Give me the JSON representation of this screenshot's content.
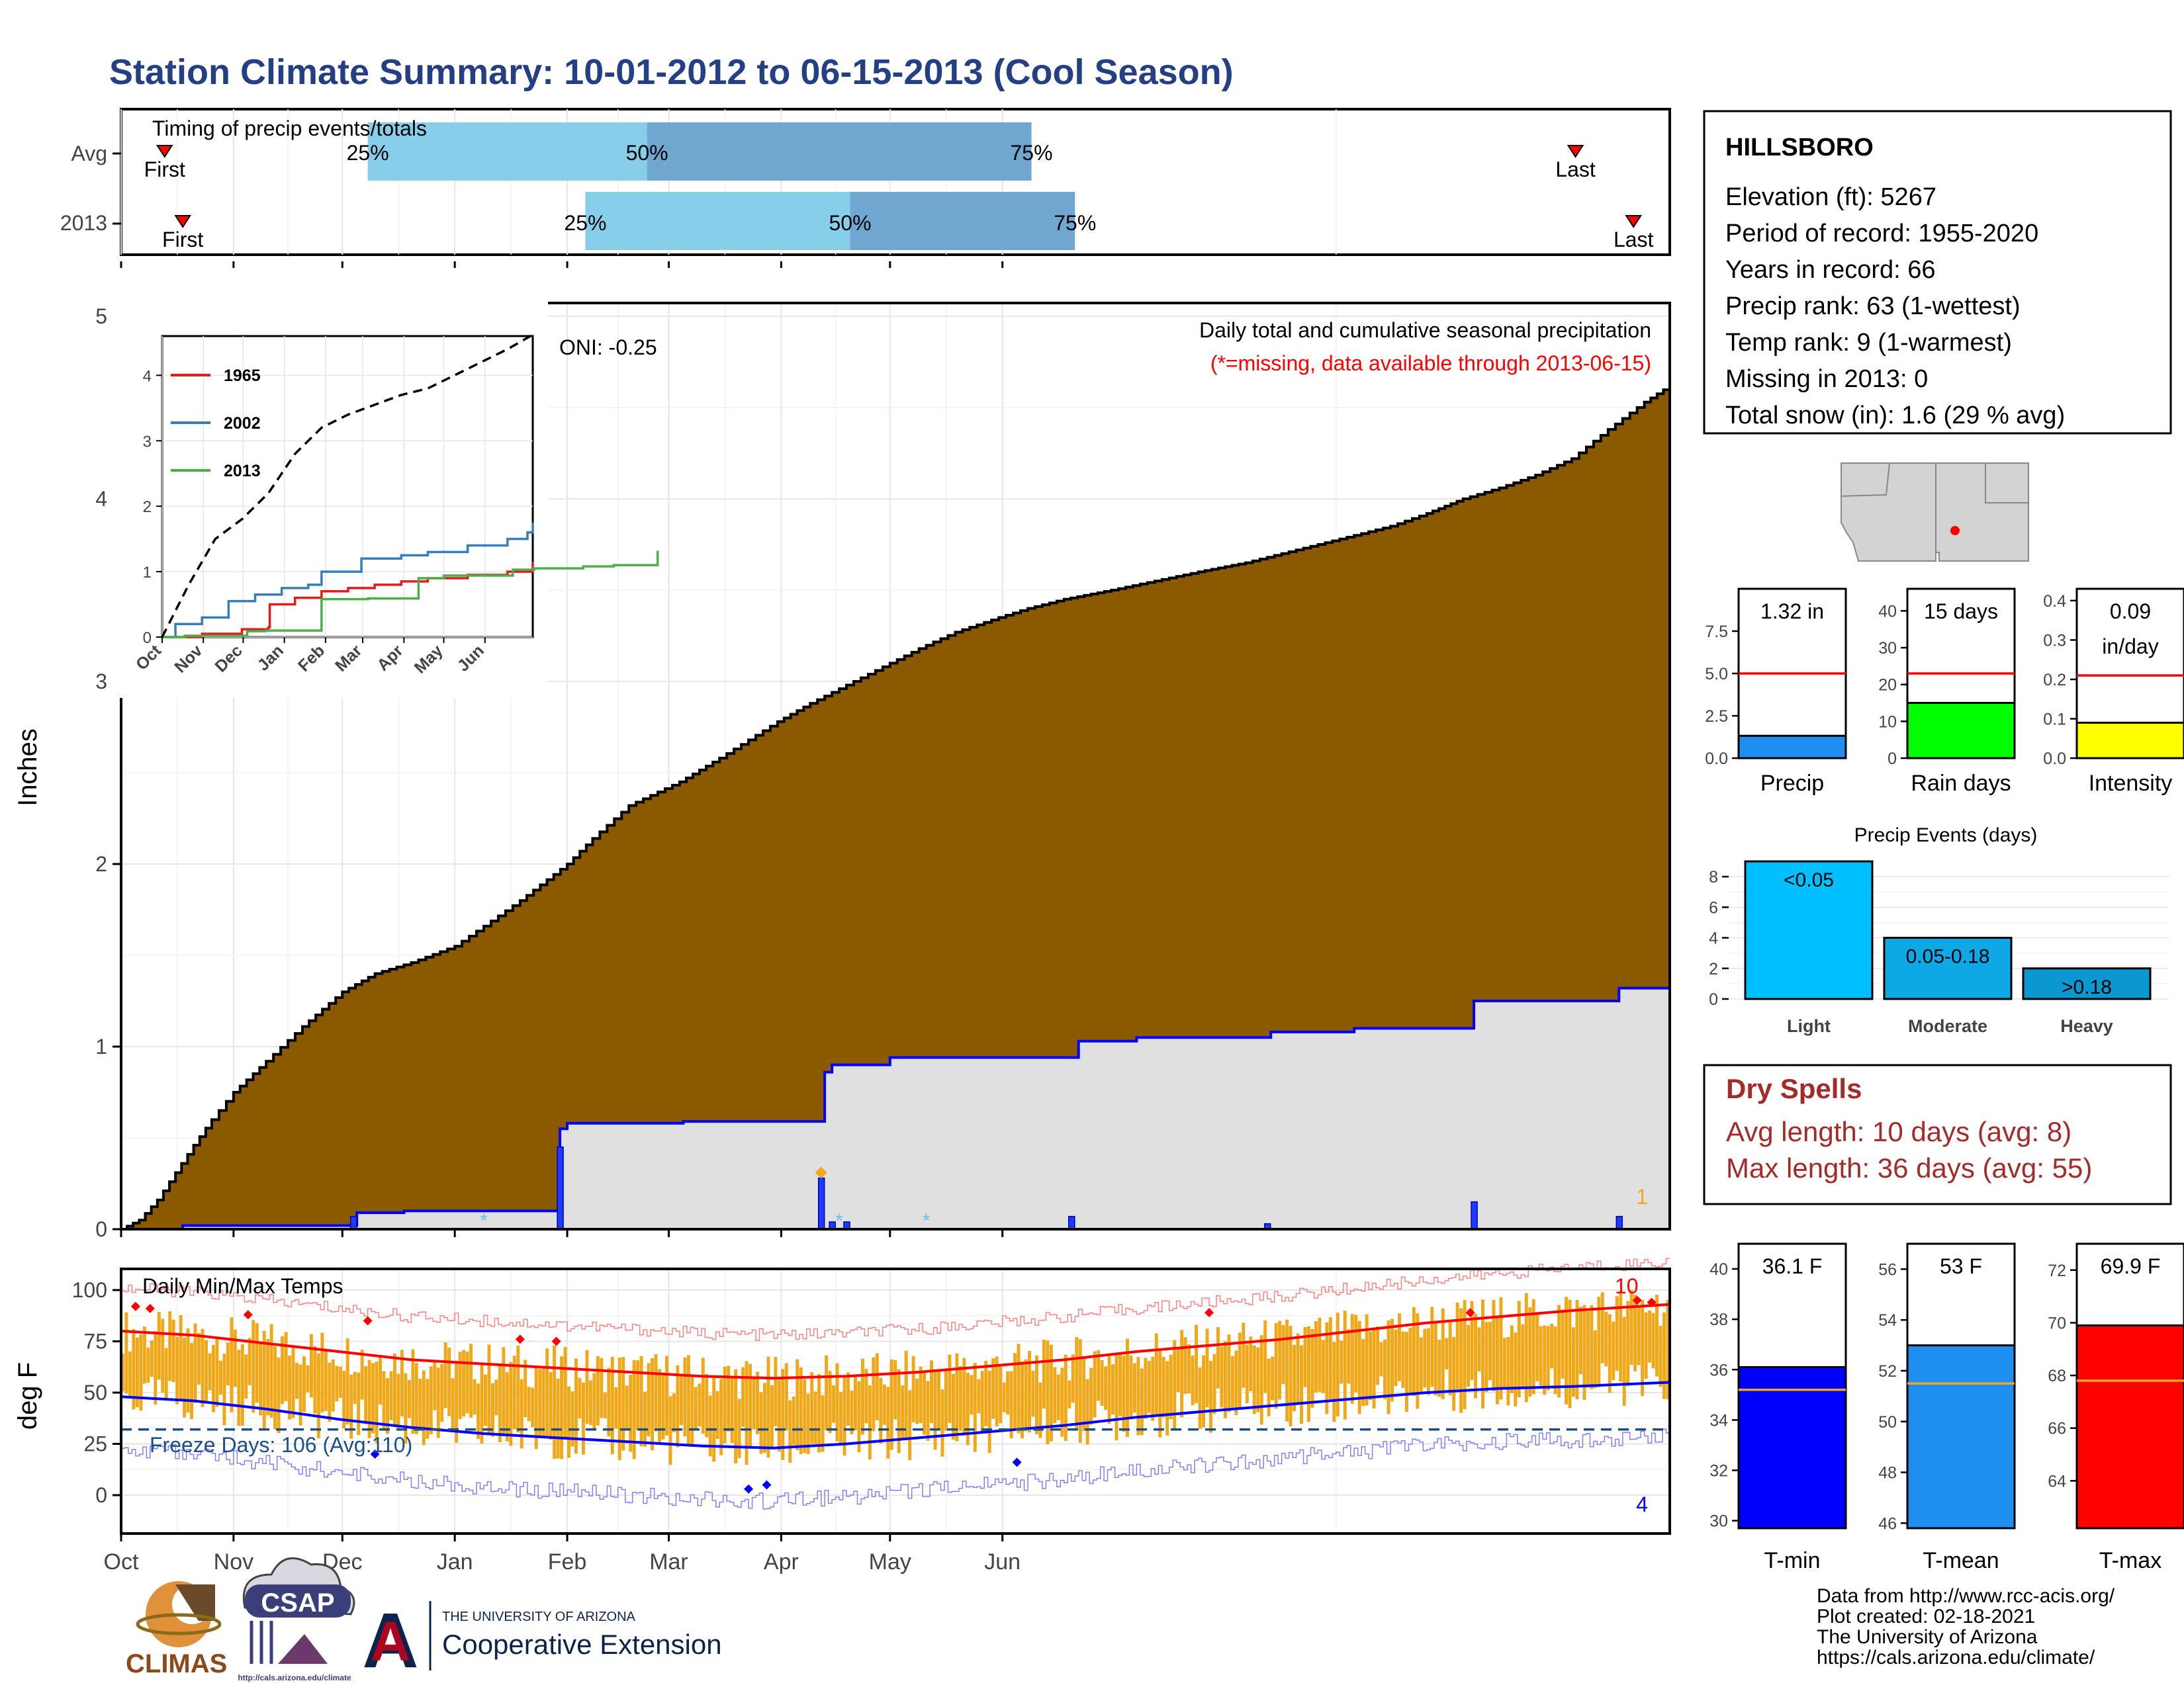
{
  "title": "Station Climate Summary: 10-01-2012 to 06-15-2013 (Cool Season)",
  "colors": {
    "title": "#253f84",
    "brown": "#8b5a00",
    "grey_fill": "#e0e0e0",
    "blue": "#0000ff",
    "light_blue": "#87ceeb",
    "mid_blue": "#6fa7d1",
    "red": "#ff0000",
    "orange": "#f0a818",
    "green": "#00ff00",
    "yellow": "#ffff00",
    "dry_red": "#a52a2a",
    "freeze": "#1a4f8a"
  },
  "timing": {
    "label": "Timing of precip events/totals",
    "rows": [
      {
        "name": "Avg",
        "first": "First",
        "last": "Last",
        "p25": "25%",
        "p50": "50%",
        "p75": "75%",
        "first_day": 12,
        "p25_day": 68,
        "p50_day": 145,
        "p75_day": 251,
        "last_day": 401
      },
      {
        "name": "2013",
        "first": "First",
        "last": "Last",
        "p25": "25%",
        "p50": "50%",
        "p75": "75%",
        "first_day": 17,
        "p25_day": 128,
        "p50_day": 201,
        "p75_day": 263,
        "last_day": 417
      }
    ]
  },
  "month_labels": [
    "Oct",
    "Nov",
    "Dec",
    "Jan",
    "Feb",
    "Mar",
    "Apr",
    "May",
    "Jun"
  ],
  "main": {
    "ylabel": "Inches",
    "y_ticks": [
      "0",
      "1",
      "2",
      "3",
      "4",
      "5"
    ],
    "ylim": [
      0,
      5
    ],
    "oni": "ONI: -0.25",
    "caption": "Daily total and cumulative seasonal precipitation",
    "caption_missing": "(*=missing, data available through 2013-06-15)",
    "corner_count": "1"
  },
  "chart_data": [
    {
      "type": "area",
      "name_hint": "cumulative average precipitation (brown area)",
      "x_unit": "days since Oct 1",
      "x": [
        0,
        5,
        10,
        15,
        20,
        25,
        31,
        40,
        50,
        61,
        70,
        80,
        92,
        100,
        110,
        123,
        130,
        140,
        154,
        165,
        181,
        190,
        200,
        212,
        220,
        230,
        242,
        250,
        260,
        273,
        285,
        297,
        310,
        320,
        330,
        340,
        350,
        360,
        365,
        370,
        380,
        390,
        400,
        410,
        420,
        427
      ],
      "y": [
        0,
        0.05,
        0.16,
        0.31,
        0.46,
        0.6,
        0.75,
        0.92,
        1.11,
        1.3,
        1.4,
        1.46,
        1.55,
        1.66,
        1.8,
        2.0,
        2.14,
        2.32,
        2.45,
        2.58,
        2.78,
        2.88,
        2.98,
        3.1,
        3.18,
        3.27,
        3.35,
        3.4,
        3.45,
        3.5,
        3.55,
        3.6,
        3.65,
        3.7,
        3.75,
        3.8,
        3.85,
        3.92,
        3.96,
        4.0,
        4.06,
        4.13,
        4.22,
        4.38,
        4.53,
        4.62
      ]
    },
    {
      "type": "line",
      "name_hint": "cumulative 2013 precipitation (blue step)",
      "x": [
        0,
        17,
        64,
        65,
        78,
        120,
        121,
        123,
        155,
        193,
        194,
        196,
        212,
        263,
        264,
        280,
        316,
        317,
        338,
        340,
        372,
        373,
        412,
        413,
        427
      ],
      "y": [
        0,
        0.02,
        0.02,
        0.09,
        0.1,
        0.1,
        0.55,
        0.58,
        0.59,
        0.59,
        0.86,
        0.9,
        0.94,
        0.94,
        1.03,
        1.05,
        1.05,
        1.08,
        1.08,
        1.1,
        1.1,
        1.25,
        1.25,
        1.32,
        1.32
      ]
    },
    {
      "type": "bar",
      "name_hint": "daily 2013 precipitation",
      "x": [
        64,
        121,
        193,
        196,
        200,
        262,
        316,
        373,
        413
      ],
      "y": [
        0.07,
        0.45,
        0.28,
        0.04,
        0.04,
        0.07,
        0.03,
        0.15,
        0.07
      ]
    },
    {
      "type": "line",
      "inset": true,
      "x_labels": [
        "Oct",
        "Nov",
        "Dec",
        "Jan",
        "Feb",
        "Mar",
        "Apr",
        "May",
        "Jun"
      ],
      "y_ticks": [
        "0",
        "1",
        "2",
        "3",
        "4"
      ],
      "ylim": [
        0,
        4.6
      ],
      "series": [
        {
          "name": "1965",
          "x": [
            0,
            30,
            60,
            80,
            81,
            100,
            120,
            140,
            160,
            180,
            200,
            230,
            260,
            279
          ],
          "y": [
            0,
            0.05,
            0.12,
            0.15,
            0.5,
            0.6,
            0.7,
            0.75,
            0.8,
            0.85,
            0.9,
            0.95,
            1.0,
            1.15
          ]
        },
        {
          "name": "2002",
          "x": [
            0,
            10,
            30,
            50,
            70,
            90,
            110,
            120,
            150,
            180,
            200,
            230,
            260,
            275,
            279
          ],
          "y": [
            0,
            0.2,
            0.3,
            0.55,
            0.65,
            0.75,
            0.8,
            1.0,
            1.2,
            1.25,
            1.3,
            1.4,
            1.5,
            1.6,
            1.75
          ]
        },
        {
          "name": "2013",
          "x": [
            0,
            17,
            64,
            78,
            120,
            155,
            193,
            212,
            264,
            280,
            317,
            340,
            373
          ],
          "y": [
            0,
            0.02,
            0.09,
            0.1,
            0.58,
            0.59,
            0.9,
            0.94,
            1.03,
            1.05,
            1.08,
            1.1,
            1.32
          ]
        },
        {
          "name": "avg",
          "x": [
            0,
            20,
            40,
            60,
            80,
            100,
            120,
            140,
            160,
            180,
            200,
            220,
            240,
            260,
            279
          ],
          "y": [
            0,
            0.8,
            1.5,
            1.8,
            2.2,
            2.8,
            3.2,
            3.4,
            3.55,
            3.7,
            3.8,
            4.0,
            4.2,
            4.4,
            4.62
          ]
        }
      ]
    },
    {
      "type": "line",
      "name_hint": "daily temperatures",
      "title": "Daily Min/Max Temps",
      "ylabel": "deg F",
      "y_ticks": [
        "0",
        "25",
        "50",
        "75",
        "100"
      ],
      "ylim": [
        -15,
        110
      ],
      "freeze_line": 32,
      "freeze_label": "Freeze Days: 106 (Avg:110)",
      "record_high_count": "10",
      "record_low_count": "4",
      "avg_max": {
        "x": [
          0,
          20,
          40,
          60,
          80,
          100,
          120,
          140,
          160,
          180,
          200,
          220,
          240,
          260,
          280,
          300,
          320,
          340,
          360,
          380,
          400,
          427
        ],
        "y": [
          80,
          78,
          74,
          70,
          66,
          64,
          62,
          60,
          58,
          57,
          58,
          60,
          63,
          66,
          70,
          73,
          76,
          80,
          84,
          87,
          90,
          93
        ]
      },
      "avg_min": {
        "x": [
          0,
          20,
          40,
          60,
          80,
          100,
          120,
          140,
          160,
          180,
          200,
          220,
          240,
          260,
          280,
          300,
          320,
          340,
          360,
          380,
          400,
          427
        ],
        "y": [
          48,
          46,
          42,
          37,
          33,
          30,
          28,
          26,
          24,
          23,
          25,
          28,
          31,
          34,
          38,
          41,
          44,
          47,
          50,
          52,
          53,
          55
        ]
      }
    },
    {
      "type": "bar",
      "panel": "Precip",
      "value_label": "1.32 in",
      "value": 1.32,
      "average": 5.0,
      "y_ticks": [
        "0.0",
        "2.5",
        "5.0",
        "7.5"
      ],
      "ylim": [
        0,
        10
      ]
    },
    {
      "type": "bar",
      "panel": "Rain days",
      "value_label": "15 days",
      "value": 15,
      "average": 23,
      "y_ticks": [
        "0",
        "10",
        "20",
        "30",
        "40"
      ],
      "ylim": [
        0,
        46
      ]
    },
    {
      "type": "bar",
      "panel": "Intensity",
      "value_label": "0.09",
      "value_label2": "in/day",
      "value": 0.09,
      "average": 0.21,
      "y_ticks": [
        "0.0",
        "0.1",
        "0.2",
        "0.3",
        "0.4"
      ],
      "ylim": [
        0,
        0.43
      ]
    },
    {
      "type": "bar",
      "title": "Precip Events (days)",
      "categories": [
        "Light",
        "Moderate",
        "Heavy"
      ],
      "bar_labels": [
        "<0.05",
        "0.05-0.18",
        ">0.18"
      ],
      "values": [
        9,
        4,
        2
      ],
      "y_ticks": [
        "0",
        "2",
        "4",
        "6",
        "8"
      ],
      "ylim": [
        0,
        9
      ]
    },
    {
      "type": "bar",
      "panel": "T-min",
      "value_label": "36.1 F",
      "value": 36.1,
      "average": 35.2,
      "y_ticks": [
        "30",
        "32",
        "34",
        "36",
        "38",
        "40"
      ],
      "ylim": [
        29.7,
        41
      ]
    },
    {
      "type": "bar",
      "panel": "T-mean",
      "value_label": "53 F",
      "value": 53.0,
      "average": 51.5,
      "y_ticks": [
        "46",
        "48",
        "50",
        "52",
        "54",
        "56"
      ],
      "ylim": [
        45.8,
        57
      ]
    },
    {
      "type": "bar",
      "panel": "T-max",
      "value_label": "69.9 F",
      "value": 69.9,
      "average": 67.8,
      "y_ticks": [
        "64",
        "66",
        "68",
        "70",
        "72"
      ],
      "ylim": [
        62.2,
        73
      ]
    }
  ],
  "station": {
    "name": "HILLSBORO",
    "lines": [
      "Elevation (ft): 5267",
      "Period of record: 1955-2020",
      "Years in record: 66",
      "Precip rank: 63 (1-wettest)",
      "Temp rank: 9 (1-warmest)",
      "Missing in 2013: 0",
      "Total snow (in): 1.6 (29 % avg)"
    ]
  },
  "dry_spells": {
    "title": "Dry Spells",
    "avg": "Avg length: 10 days (avg: 8)",
    "max": "Max length: 36 days (avg: 55)"
  },
  "logos": {
    "climas": "CLIMAS",
    "csap": "CSAP",
    "csap_url": "http://cals.arizona.edu/climate",
    "ua_small": "THE UNIVERSITY OF ARIZONA",
    "ua_big": "Cooperative Extension"
  },
  "footer": [
    "Data from http://www.rcc-acis.org/",
    "Plot created: 02-18-2021",
    "The University of Arizona",
    "https://cals.arizona.edu/climate/"
  ]
}
